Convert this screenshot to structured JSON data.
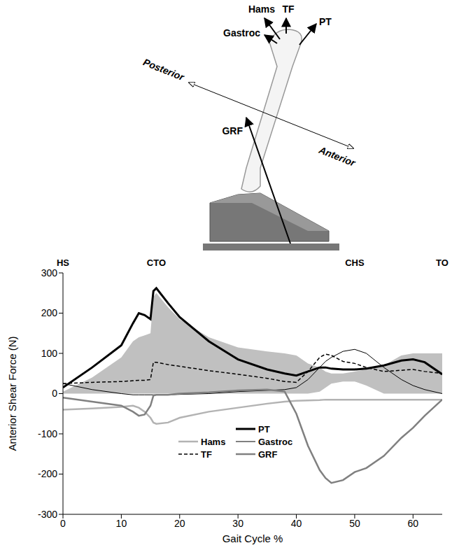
{
  "diagram": {
    "forces": [
      "Hams",
      "TF",
      "Gastroc",
      "PT",
      "GRF"
    ],
    "directions": [
      "Posterior",
      "Anterior"
    ]
  },
  "chart_data": {
    "type": "line",
    "x_label": "Gait Cycle %",
    "y_label": "Anterior Shear Force (N)",
    "xlim": [
      0,
      65
    ],
    "xticks": [
      0,
      10,
      20,
      30,
      40,
      50,
      60
    ],
    "ylim": [
      -300,
      300
    ],
    "yticks": [
      -300,
      -200,
      -100,
      0,
      100,
      200,
      300
    ],
    "grid": false,
    "legend": "lower center",
    "events": [
      {
        "label": "HS",
        "x": 0
      },
      {
        "label": "CTO",
        "x": 16
      },
      {
        "label": "CHS",
        "x": 50
      },
      {
        "label": "TO",
        "x": 65
      }
    ],
    "x": [
      0,
      5,
      10,
      12,
      13,
      14,
      15,
      15.5,
      16,
      18,
      20,
      25,
      30,
      35,
      38,
      40,
      42,
      44,
      45,
      46,
      48,
      50,
      52,
      55,
      58,
      60,
      62,
      65
    ],
    "band": {
      "color": "#c0c0c0",
      "lower": [
        0,
        0,
        0,
        0,
        0,
        0,
        0,
        0,
        0,
        0,
        0,
        0,
        0,
        0,
        0,
        0,
        0,
        5,
        15,
        25,
        30,
        30,
        20,
        0,
        0,
        0,
        0,
        0
      ],
      "upper": [
        5,
        40,
        90,
        130,
        140,
        145,
        150,
        240,
        250,
        215,
        185,
        140,
        115,
        105,
        100,
        95,
        75,
        65,
        55,
        50,
        50,
        55,
        60,
        70,
        95,
        100,
        100,
        100
      ]
    },
    "series": [
      {
        "name": "PT",
        "color": "#000000",
        "line_style": "solid",
        "values": [
          15,
          65,
          120,
          175,
          200,
          195,
          185,
          255,
          262,
          225,
          190,
          130,
          85,
          60,
          50,
          45,
          55,
          65,
          65,
          62,
          60,
          60,
          62,
          70,
          82,
          85,
          78,
          48
        ]
      },
      {
        "name": "Hams",
        "color": "#b3b3b3",
        "line_style": "solid",
        "values": [
          -40,
          -37,
          -33,
          -30,
          -35,
          -45,
          -60,
          -72,
          -75,
          -72,
          -60,
          -45,
          -35,
          -25,
          -20,
          -18,
          -17,
          -16,
          -15,
          -15,
          -15,
          -15,
          -15,
          -15,
          -15,
          -15,
          -15,
          -15
        ]
      },
      {
        "name": "Gastroc",
        "color": "#000000",
        "line_style": "solid",
        "values": [
          25,
          10,
          0,
          -3,
          -3,
          -3,
          -3,
          -3,
          -3,
          -3,
          -2,
          0,
          5,
          8,
          10,
          15,
          35,
          65,
          80,
          90,
          105,
          110,
          100,
          65,
          35,
          20,
          10,
          0
        ]
      },
      {
        "name": "TF",
        "color": "#000000",
        "line_style": "dashed",
        "values": [
          25,
          28,
          30,
          32,
          33,
          33,
          35,
          78,
          78,
          72,
          68,
          57,
          48,
          38,
          30,
          28,
          55,
          90,
          98,
          95,
          80,
          75,
          65,
          55,
          58,
          60,
          55,
          50
        ]
      },
      {
        "name": "GRF",
        "color": "#808080",
        "line_style": "solid",
        "values": [
          -10,
          -20,
          -30,
          -45,
          -55,
          -52,
          -30,
          -5,
          -3,
          -3,
          0,
          3,
          8,
          10,
          5,
          -50,
          -130,
          -190,
          -210,
          -222,
          -215,
          -195,
          -185,
          -155,
          -110,
          -85,
          -55,
          -15
        ]
      }
    ]
  }
}
